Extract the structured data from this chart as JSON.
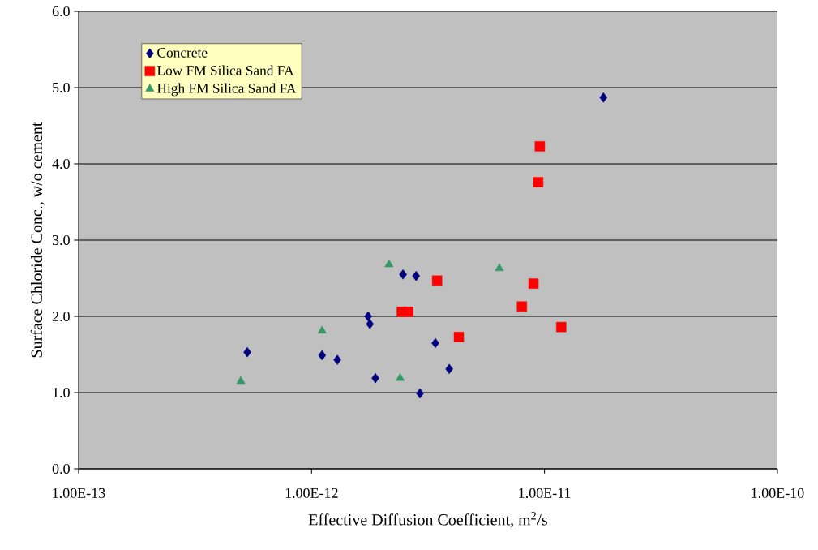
{
  "chart_data": {
    "type": "scatter",
    "xlabel": "Effective Diffusion Coefficient, m$^{2}$/s",
    "ylabel": "Surface Chloride Conc., w/o cement",
    "log": "x",
    "xlim": [
      1e-13,
      1e-10
    ],
    "xticks": [
      {
        "value": 1e-13,
        "label": "1.00E-13"
      },
      {
        "value": 1e-12,
        "label": "1.00E-12"
      },
      {
        "value": 1e-11,
        "label": "1.00E-11"
      },
      {
        "value": 1e-10,
        "label": "1.00E-10"
      }
    ],
    "ylim": [
      0,
      6
    ],
    "yticks": [
      {
        "value": 0,
        "label": "0.0"
      },
      {
        "value": 1,
        "label": "1.0"
      },
      {
        "value": 2,
        "label": "2.0"
      },
      {
        "value": 3,
        "label": "3.0"
      },
      {
        "value": 4,
        "label": "4.0"
      },
      {
        "value": 5,
        "label": "5.0"
      },
      {
        "value": 6,
        "label": "6.0"
      }
    ],
    "grid": "y",
    "legend": "top left",
    "series": [
      {
        "name": "Concrete",
        "color": "#000080",
        "marker": "diamond",
        "x": [
          5.3e-13,
          1.11e-12,
          1.29e-12,
          1.75e-12,
          1.78e-12,
          1.88e-12,
          2.47e-12,
          2.81e-12,
          2.92e-12,
          3.4e-12,
          3.9e-12,
          1.79e-11
        ],
        "values": [
          1.53,
          1.49,
          1.43,
          2.0,
          1.9,
          1.19,
          2.55,
          2.53,
          0.99,
          1.65,
          1.31,
          4.87
        ]
      },
      {
        "name": "Low FM Silica Sand  FA",
        "color": "#ff0000",
        "marker": "square",
        "x": [
          2.44e-12,
          2.6e-12,
          3.46e-12,
          4.29e-12,
          8e-12,
          8.97e-12,
          9.4e-12,
          9.55e-12,
          1.18e-11
        ],
        "values": [
          2.06,
          2.06,
          2.47,
          1.73,
          2.13,
          2.43,
          3.76,
          4.23,
          1.86
        ]
      },
      {
        "name": "High FM Silica Sand FA",
        "color": "#339966",
        "marker": "triangle",
        "x": [
          4.97e-13,
          1.11e-12,
          2.15e-12,
          2.4e-12,
          6.4e-12
        ],
        "values": [
          1.15,
          1.81,
          2.68,
          1.19,
          2.63
        ]
      }
    ]
  }
}
